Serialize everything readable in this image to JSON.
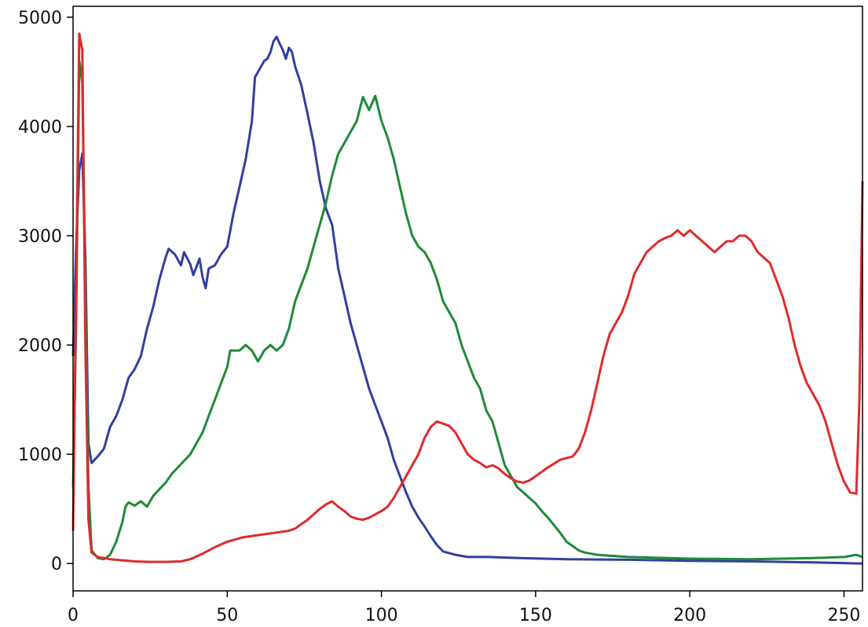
{
  "chart_data": {
    "type": "line",
    "title": "",
    "xlabel": "",
    "ylabel": "",
    "xlim": [
      0,
      256
    ],
    "ylim": [
      -250,
      5100
    ],
    "grid": false,
    "x_ticks": [
      0,
      50,
      100,
      150,
      200,
      250
    ],
    "y_ticks": [
      0,
      1000,
      2000,
      3000,
      4000,
      5000
    ],
    "series": [
      {
        "color": "#3040a0",
        "points": [
          [
            0,
            1900
          ],
          [
            1,
            2900
          ],
          [
            2,
            3600
          ],
          [
            3,
            3750
          ],
          [
            4,
            2800
          ],
          [
            5,
            1100
          ],
          [
            6,
            920
          ],
          [
            8,
            980
          ],
          [
            10,
            1050
          ],
          [
            12,
            1250
          ],
          [
            14,
            1350
          ],
          [
            16,
            1500
          ],
          [
            18,
            1700
          ],
          [
            20,
            1780
          ],
          [
            22,
            1900
          ],
          [
            24,
            2150
          ],
          [
            26,
            2350
          ],
          [
            28,
            2600
          ],
          [
            30,
            2800
          ],
          [
            31,
            2880
          ],
          [
            33,
            2830
          ],
          [
            35,
            2730
          ],
          [
            36,
            2850
          ],
          [
            38,
            2740
          ],
          [
            39,
            2640
          ],
          [
            41,
            2790
          ],
          [
            42,
            2620
          ],
          [
            43,
            2520
          ],
          [
            44,
            2700
          ],
          [
            46,
            2730
          ],
          [
            48,
            2830
          ],
          [
            50,
            2900
          ],
          [
            52,
            3200
          ],
          [
            54,
            3450
          ],
          [
            56,
            3700
          ],
          [
            58,
            4050
          ],
          [
            59,
            4450
          ],
          [
            60,
            4500
          ],
          [
            62,
            4600
          ],
          [
            63,
            4620
          ],
          [
            64,
            4680
          ],
          [
            65,
            4780
          ],
          [
            66,
            4820
          ],
          [
            67,
            4760
          ],
          [
            68,
            4700
          ],
          [
            69,
            4620
          ],
          [
            70,
            4720
          ],
          [
            71,
            4680
          ],
          [
            72,
            4550
          ],
          [
            74,
            4380
          ],
          [
            76,
            4120
          ],
          [
            78,
            3850
          ],
          [
            80,
            3500
          ],
          [
            82,
            3250
          ],
          [
            84,
            3100
          ],
          [
            86,
            2700
          ],
          [
            88,
            2450
          ],
          [
            90,
            2200
          ],
          [
            92,
            2000
          ],
          [
            94,
            1800
          ],
          [
            96,
            1600
          ],
          [
            98,
            1450
          ],
          [
            100,
            1300
          ],
          [
            102,
            1150
          ],
          [
            104,
            950
          ],
          [
            106,
            800
          ],
          [
            108,
            650
          ],
          [
            110,
            520
          ],
          [
            112,
            420
          ],
          [
            114,
            340
          ],
          [
            116,
            250
          ],
          [
            118,
            170
          ],
          [
            120,
            110
          ],
          [
            124,
            80
          ],
          [
            128,
            60
          ],
          [
            135,
            60
          ],
          [
            145,
            50
          ],
          [
            160,
            40
          ],
          [
            180,
            35
          ],
          [
            200,
            25
          ],
          [
            220,
            20
          ],
          [
            240,
            10
          ],
          [
            256,
            0
          ]
        ]
      },
      {
        "color": "#1e8a3a",
        "points": [
          [
            0,
            700
          ],
          [
            1,
            2200
          ],
          [
            2,
            4600
          ],
          [
            3,
            4400
          ],
          [
            4,
            2500
          ],
          [
            5,
            700
          ],
          [
            6,
            120
          ],
          [
            8,
            50
          ],
          [
            10,
            40
          ],
          [
            12,
            80
          ],
          [
            14,
            200
          ],
          [
            16,
            380
          ],
          [
            17,
            520
          ],
          [
            18,
            560
          ],
          [
            20,
            530
          ],
          [
            22,
            570
          ],
          [
            24,
            520
          ],
          [
            26,
            620
          ],
          [
            28,
            680
          ],
          [
            30,
            740
          ],
          [
            32,
            820
          ],
          [
            34,
            880
          ],
          [
            36,
            940
          ],
          [
            38,
            1000
          ],
          [
            40,
            1100
          ],
          [
            42,
            1200
          ],
          [
            44,
            1350
          ],
          [
            46,
            1500
          ],
          [
            48,
            1650
          ],
          [
            50,
            1800
          ],
          [
            51,
            1950
          ],
          [
            54,
            1950
          ],
          [
            56,
            2000
          ],
          [
            58,
            1950
          ],
          [
            60,
            1850
          ],
          [
            62,
            1950
          ],
          [
            64,
            2000
          ],
          [
            66,
            1950
          ],
          [
            68,
            2000
          ],
          [
            70,
            2150
          ],
          [
            72,
            2400
          ],
          [
            74,
            2550
          ],
          [
            76,
            2700
          ],
          [
            78,
            2900
          ],
          [
            80,
            3100
          ],
          [
            82,
            3300
          ],
          [
            84,
            3550
          ],
          [
            86,
            3750
          ],
          [
            88,
            3850
          ],
          [
            90,
            3950
          ],
          [
            92,
            4050
          ],
          [
            94,
            4270
          ],
          [
            96,
            4150
          ],
          [
            98,
            4280
          ],
          [
            100,
            4050
          ],
          [
            102,
            3900
          ],
          [
            104,
            3700
          ],
          [
            106,
            3450
          ],
          [
            108,
            3200
          ],
          [
            110,
            3000
          ],
          [
            112,
            2900
          ],
          [
            114,
            2850
          ],
          [
            116,
            2750
          ],
          [
            118,
            2600
          ],
          [
            120,
            2400
          ],
          [
            122,
            2300
          ],
          [
            124,
            2200
          ],
          [
            126,
            2000
          ],
          [
            128,
            1850
          ],
          [
            130,
            1700
          ],
          [
            132,
            1600
          ],
          [
            134,
            1400
          ],
          [
            136,
            1300
          ],
          [
            138,
            1100
          ],
          [
            140,
            900
          ],
          [
            142,
            800
          ],
          [
            144,
            700
          ],
          [
            146,
            650
          ],
          [
            148,
            600
          ],
          [
            150,
            550
          ],
          [
            152,
            480
          ],
          [
            154,
            420
          ],
          [
            156,
            350
          ],
          [
            158,
            280
          ],
          [
            160,
            200
          ],
          [
            162,
            160
          ],
          [
            164,
            120
          ],
          [
            166,
            100
          ],
          [
            168,
            90
          ],
          [
            170,
            80
          ],
          [
            180,
            60
          ],
          [
            200,
            45
          ],
          [
            220,
            40
          ],
          [
            240,
            50
          ],
          [
            250,
            60
          ],
          [
            254,
            80
          ],
          [
            256,
            60
          ]
        ]
      },
      {
        "color": "#e02a2a",
        "points": [
          [
            0,
            300
          ],
          [
            1,
            2500
          ],
          [
            2,
            4850
          ],
          [
            3,
            4700
          ],
          [
            4,
            2000
          ],
          [
            5,
            400
          ],
          [
            6,
            100
          ],
          [
            8,
            60
          ],
          [
            12,
            40
          ],
          [
            16,
            30
          ],
          [
            20,
            20
          ],
          [
            25,
            15
          ],
          [
            30,
            15
          ],
          [
            35,
            20
          ],
          [
            38,
            40
          ],
          [
            42,
            90
          ],
          [
            46,
            150
          ],
          [
            50,
            200
          ],
          [
            55,
            240
          ],
          [
            60,
            260
          ],
          [
            65,
            280
          ],
          [
            70,
            300
          ],
          [
            72,
            320
          ],
          [
            74,
            360
          ],
          [
            76,
            400
          ],
          [
            78,
            450
          ],
          [
            80,
            500
          ],
          [
            82,
            540
          ],
          [
            84,
            570
          ],
          [
            86,
            520
          ],
          [
            88,
            480
          ],
          [
            90,
            430
          ],
          [
            92,
            410
          ],
          [
            94,
            400
          ],
          [
            96,
            420
          ],
          [
            98,
            450
          ],
          [
            100,
            480
          ],
          [
            102,
            520
          ],
          [
            104,
            600
          ],
          [
            106,
            700
          ],
          [
            108,
            800
          ],
          [
            110,
            900
          ],
          [
            112,
            1000
          ],
          [
            114,
            1150
          ],
          [
            116,
            1250
          ],
          [
            118,
            1300
          ],
          [
            120,
            1280
          ],
          [
            122,
            1260
          ],
          [
            124,
            1200
          ],
          [
            126,
            1100
          ],
          [
            128,
            1000
          ],
          [
            130,
            950
          ],
          [
            132,
            920
          ],
          [
            134,
            880
          ],
          [
            136,
            900
          ],
          [
            138,
            870
          ],
          [
            140,
            820
          ],
          [
            142,
            780
          ],
          [
            144,
            750
          ],
          [
            146,
            740
          ],
          [
            148,
            760
          ],
          [
            150,
            800
          ],
          [
            154,
            880
          ],
          [
            158,
            950
          ],
          [
            162,
            980
          ],
          [
            164,
            1050
          ],
          [
            166,
            1200
          ],
          [
            168,
            1400
          ],
          [
            170,
            1650
          ],
          [
            172,
            1900
          ],
          [
            174,
            2100
          ],
          [
            176,
            2200
          ],
          [
            178,
            2300
          ],
          [
            180,
            2450
          ],
          [
            182,
            2650
          ],
          [
            184,
            2750
          ],
          [
            186,
            2850
          ],
          [
            188,
            2900
          ],
          [
            190,
            2950
          ],
          [
            192,
            2980
          ],
          [
            194,
            3000
          ],
          [
            196,
            3050
          ],
          [
            198,
            3000
          ],
          [
            200,
            3050
          ],
          [
            202,
            3000
          ],
          [
            204,
            2950
          ],
          [
            206,
            2900
          ],
          [
            208,
            2850
          ],
          [
            210,
            2900
          ],
          [
            212,
            2950
          ],
          [
            214,
            2950
          ],
          [
            216,
            3000
          ],
          [
            218,
            3000
          ],
          [
            220,
            2950
          ],
          [
            222,
            2850
          ],
          [
            224,
            2800
          ],
          [
            226,
            2750
          ],
          [
            228,
            2600
          ],
          [
            230,
            2450
          ],
          [
            232,
            2250
          ],
          [
            234,
            2000
          ],
          [
            236,
            1800
          ],
          [
            238,
            1650
          ],
          [
            240,
            1550
          ],
          [
            242,
            1450
          ],
          [
            244,
            1300
          ],
          [
            246,
            1100
          ],
          [
            248,
            900
          ],
          [
            250,
            750
          ],
          [
            252,
            650
          ],
          [
            254,
            640
          ],
          [
            255,
            1500
          ],
          [
            256,
            3500
          ]
        ]
      }
    ]
  }
}
